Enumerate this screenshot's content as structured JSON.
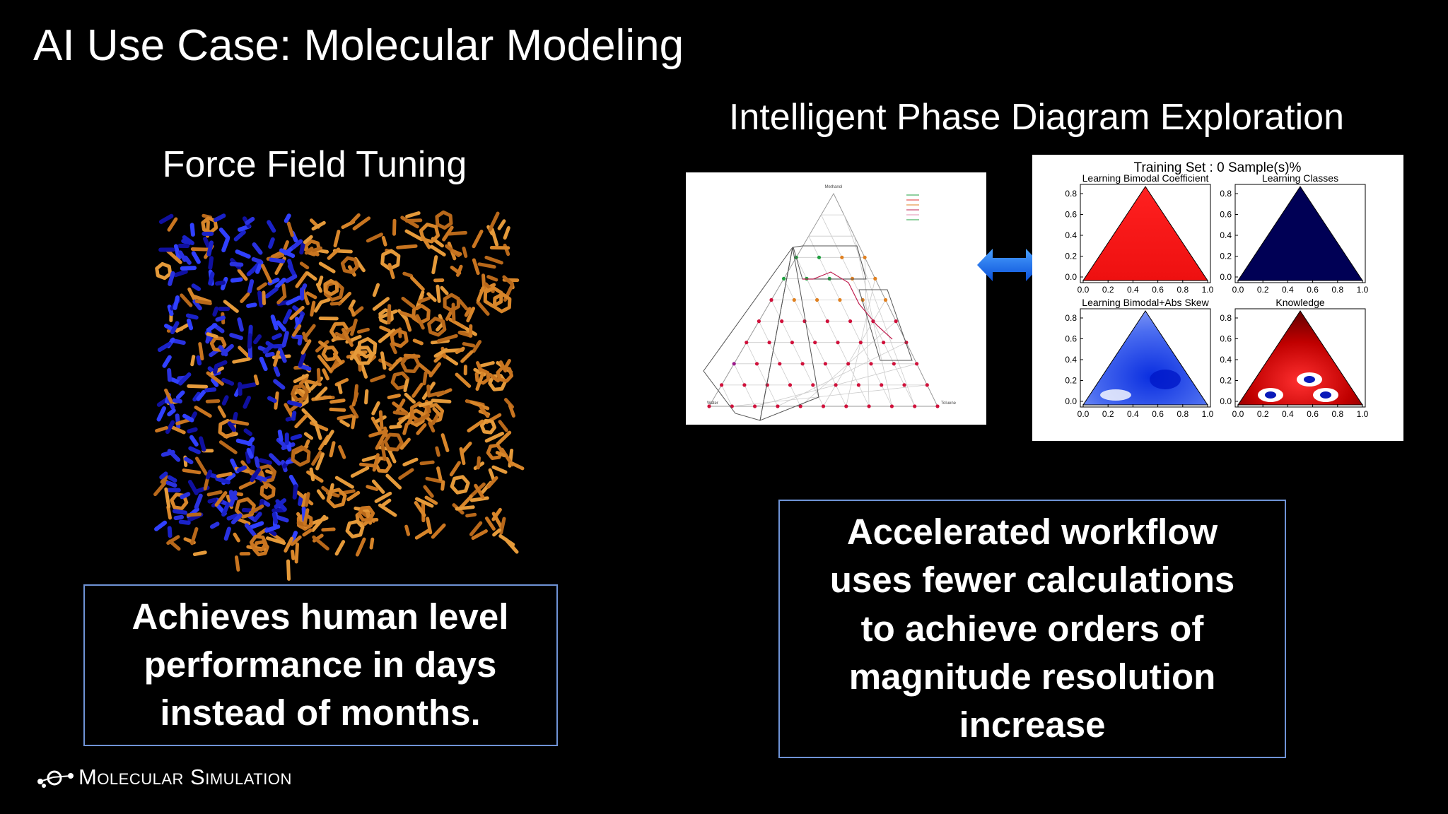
{
  "title": "AI Use Case: Molecular Modeling",
  "left": {
    "heading": "Force Field Tuning",
    "box": [
      "Achieves human level",
      "performance in days",
      "instead of months."
    ]
  },
  "right": {
    "heading": "Intelligent Phase Diagram Exploration",
    "ternary": {
      "top": "Methanol",
      "left": "Water",
      "right": "Toluene"
    },
    "panel": {
      "title": "Training Set : 0 Sample(s)%",
      "plots": [
        {
          "title": "Learning Bimodal Coefficient"
        },
        {
          "title": "Learning Classes"
        },
        {
          "title": "Learning Bimodal+Abs Skew"
        },
        {
          "title": "Knowledge"
        }
      ],
      "xticks": [
        "0.0",
        "0.2",
        "0.4",
        "0.6",
        "0.8",
        "1.0"
      ],
      "yticks": [
        "0.0",
        "0.2",
        "0.4",
        "0.6",
        "0.8"
      ]
    },
    "box": [
      "Accelerated workflow",
      "uses fewer  calculations",
      "to achieve orders of",
      "magnitude resolution",
      "increase"
    ]
  },
  "footer": "Molecular Simulation"
}
